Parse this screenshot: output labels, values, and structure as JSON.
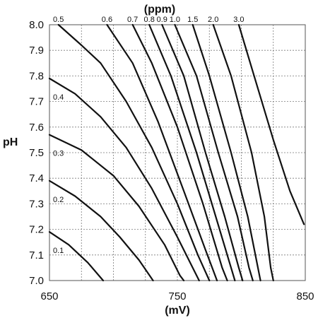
{
  "chart_data": {
    "type": "line",
    "xlabel": "(mV)",
    "ylabel": "pH",
    "top_label": "(ppm)",
    "xlim": [
      650,
      850
    ],
    "ylim": [
      7.0,
      8.0
    ],
    "x_ticks": [
      "650",
      "750",
      "850"
    ],
    "x_gridlines": [
      650,
      675,
      700,
      725,
      750,
      775,
      800,
      825,
      850
    ],
    "y_ticks": [
      "7.0",
      "7.1",
      "7.2",
      "7.3",
      "7.4",
      "7.5",
      "7.6",
      "7.7",
      "7.8",
      "7.9",
      "8.0"
    ],
    "y_gridlines": [
      7.0,
      7.1,
      7.2,
      7.3,
      7.4,
      7.5,
      7.6,
      7.7,
      7.8,
      7.9,
      8.0
    ],
    "grid": true,
    "series": [
      {
        "name": "0.1",
        "points": [
          [
            650,
            7.19
          ],
          [
            665,
            7.14
          ],
          [
            680,
            7.07
          ],
          [
            692,
            7.0
          ]
        ]
      },
      {
        "name": "0.2",
        "points": [
          [
            650,
            7.39
          ],
          [
            670,
            7.33
          ],
          [
            690,
            7.25
          ],
          [
            705,
            7.17
          ],
          [
            720,
            7.08
          ],
          [
            731,
            7.0
          ]
        ]
      },
      {
        "name": "0.3",
        "points": [
          [
            650,
            7.57
          ],
          [
            675,
            7.51
          ],
          [
            700,
            7.41
          ],
          [
            720,
            7.29
          ],
          [
            740,
            7.14
          ],
          [
            752,
            7.02
          ],
          [
            755,
            7.0
          ]
        ]
      },
      {
        "name": "0.4",
        "points": [
          [
            650,
            7.79
          ],
          [
            670,
            7.73
          ],
          [
            690,
            7.64
          ],
          [
            710,
            7.52
          ],
          [
            730,
            7.36
          ],
          [
            750,
            7.17
          ],
          [
            762,
            7.05
          ],
          [
            767,
            7.0
          ]
        ]
      },
      {
        "name": "0.5",
        "points": [
          [
            657,
            8.0
          ],
          [
            675,
            7.92
          ],
          [
            690,
            7.85
          ],
          [
            710,
            7.7
          ],
          [
            730,
            7.52
          ],
          [
            750,
            7.3
          ],
          [
            766,
            7.1
          ],
          [
            775,
            7.0
          ]
        ]
      },
      {
        "name": "0.6",
        "points": [
          [
            695,
            8.0
          ],
          [
            715,
            7.85
          ],
          [
            735,
            7.62
          ],
          [
            755,
            7.35
          ],
          [
            772,
            7.12
          ],
          [
            781,
            7.0
          ]
        ]
      },
      {
        "name": "0.7",
        "points": [
          [
            715,
            8.0
          ],
          [
            730,
            7.85
          ],
          [
            750,
            7.6
          ],
          [
            770,
            7.3
          ],
          [
            785,
            7.05
          ],
          [
            789,
            7.0
          ]
        ]
      },
      {
        "name": "0.8",
        "points": [
          [
            728,
            8.0
          ],
          [
            745,
            7.8
          ],
          [
            765,
            7.5
          ],
          [
            780,
            7.25
          ],
          [
            792,
            7.05
          ],
          [
            795,
            7.0
          ]
        ]
      },
      {
        "name": "0.9",
        "points": [
          [
            738,
            8.0
          ],
          [
            755,
            7.8
          ],
          [
            772,
            7.5
          ],
          [
            787,
            7.25
          ],
          [
            798,
            7.05
          ],
          [
            801,
            7.0
          ]
        ]
      },
      {
        "name": "1.0",
        "points": [
          [
            748,
            8.0
          ],
          [
            765,
            7.8
          ],
          [
            782,
            7.5
          ],
          [
            797,
            7.25
          ],
          [
            806,
            7.05
          ],
          [
            809,
            7.0
          ]
        ]
      },
      {
        "name": "1.5",
        "points": [
          [
            762,
            8.0
          ],
          [
            775,
            7.8
          ],
          [
            792,
            7.5
          ],
          [
            805,
            7.25
          ],
          [
            813,
            7.05
          ],
          [
            815,
            7.0
          ]
        ]
      },
      {
        "name": "2.0",
        "points": [
          [
            778,
            8.0
          ],
          [
            792,
            7.8
          ],
          [
            808,
            7.5
          ],
          [
            818,
            7.25
          ],
          [
            823,
            7.05
          ],
          [
            825,
            7.0
          ]
        ]
      },
      {
        "name": "3.0",
        "points": [
          [
            798,
            8.0
          ],
          [
            810,
            7.8
          ],
          [
            825,
            7.55
          ],
          [
            838,
            7.35
          ],
          [
            849,
            7.22
          ]
        ]
      }
    ]
  }
}
